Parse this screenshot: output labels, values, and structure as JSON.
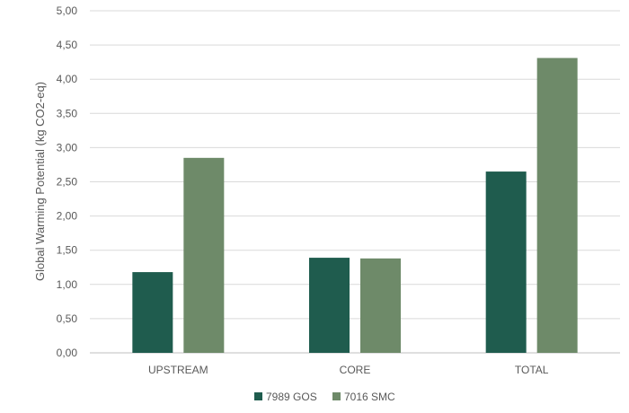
{
  "chart_data": {
    "type": "bar",
    "title": "",
    "xlabel": "",
    "ylabel": "Global Warming Potential (kg CO2-eq)",
    "categories": [
      "UPSTREAM",
      "CORE",
      "TOTAL"
    ],
    "series": [
      {
        "name": "7989 GOS",
        "color": "#1f5c4e",
        "values": [
          1.18,
          1.39,
          2.65
        ]
      },
      {
        "name": "7016 SMC",
        "color": "#6e8a69",
        "values": [
          2.85,
          1.38,
          4.31
        ]
      }
    ],
    "ylim": [
      0,
      5
    ],
    "yticks": [
      "0,00",
      "0,50",
      "1,00",
      "1,50",
      "2,00",
      "2,50",
      "3,00",
      "3,50",
      "4,00",
      "4,50",
      "5,00"
    ],
    "grid": true,
    "legend_position": "bottom"
  }
}
